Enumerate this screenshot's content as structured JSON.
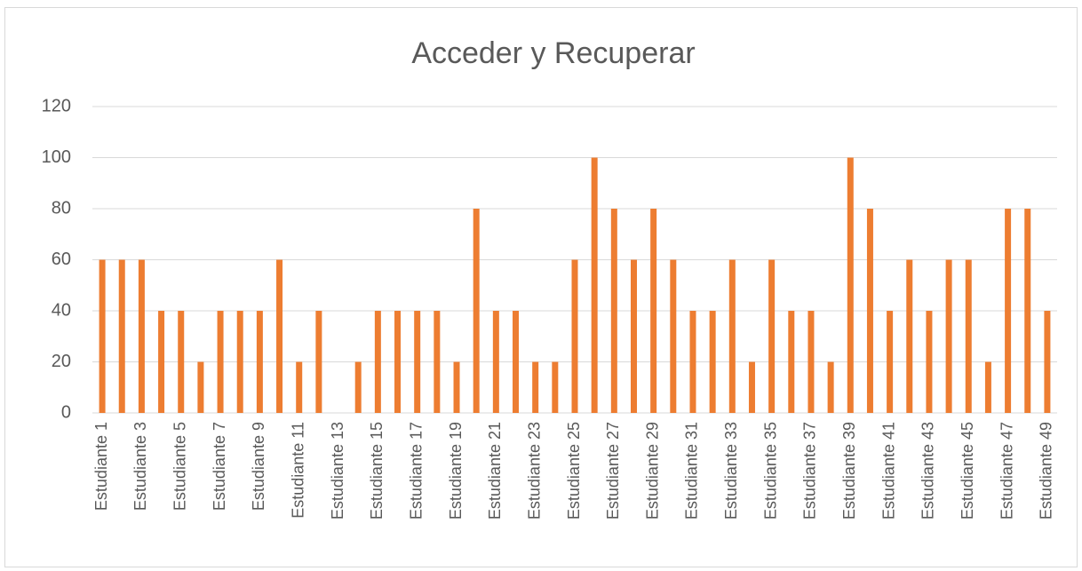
{
  "chart_data": {
    "type": "bar",
    "title": "Acceder y Recuperar",
    "categories": [
      "Estudiante 1",
      null,
      "Estudiante 3",
      null,
      "Estudiante 5",
      null,
      "Estudiante 7",
      null,
      "Estudiante 9",
      null,
      "Estudiante 11",
      null,
      "Estudiante 13",
      null,
      "Estudiante 15",
      null,
      "Estudiante 17",
      null,
      "Estudiante 19",
      null,
      "Estudiante 21",
      null,
      "Estudiante 23",
      null,
      "Estudiante 25",
      null,
      "Estudiante 27",
      null,
      "Estudiante 29",
      null,
      "Estudiante 31",
      null,
      "Estudiante 33",
      null,
      "Estudiante 35",
      null,
      "Estudiante 37",
      null,
      "Estudiante 39",
      null,
      "Estudiante 41",
      null,
      "Estudiante 43",
      null,
      "Estudiante 45",
      null,
      "Estudiante 47",
      null,
      "Estudiante 49"
    ],
    "values": [
      60,
      60,
      60,
      40,
      40,
      20,
      40,
      40,
      40,
      60,
      20,
      40,
      0,
      20,
      40,
      40,
      40,
      40,
      20,
      80,
      40,
      40,
      20,
      20,
      60,
      100,
      80,
      60,
      80,
      60,
      40,
      40,
      60,
      20,
      60,
      40,
      40,
      20,
      100,
      80,
      40,
      60,
      40,
      60,
      60,
      20,
      80,
      80,
      40
    ],
    "color": "#ed7d31",
    "ylim": [
      0,
      120
    ],
    "yticks": [
      0,
      20,
      40,
      60,
      80,
      100,
      120
    ],
    "grid": true
  }
}
